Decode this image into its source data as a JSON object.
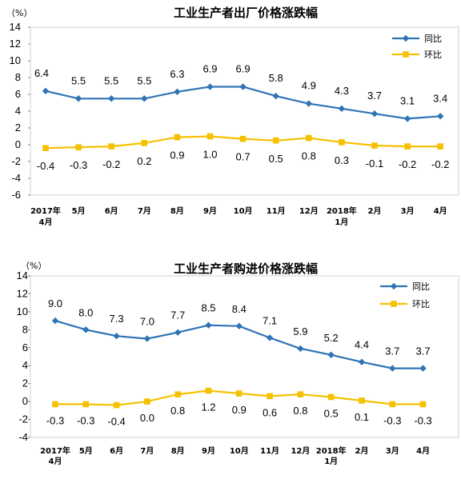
{
  "chart_data": [
    {
      "type": "line",
      "title": "工业生产者出厂价格涨跌幅",
      "unit": "（%）",
      "ylim": [
        -6,
        14
      ],
      "yticks": [
        -6,
        -4,
        -2,
        0,
        2,
        4,
        6,
        8,
        10,
        12,
        14
      ],
      "categories": [
        "2017年 4月",
        "5月",
        "6月",
        "7月",
        "8月",
        "9月",
        "10月",
        "11月",
        "12月",
        "2018年 1月",
        "2月",
        "3月",
        "4月"
      ],
      "legend_position": "top-right",
      "series": [
        {
          "name": "同比",
          "color": "#2e74b5",
          "marker": "diamond",
          "values": [
            6.4,
            5.5,
            5.5,
            5.5,
            6.3,
            6.9,
            6.9,
            5.8,
            4.9,
            4.3,
            3.7,
            3.1,
            3.4
          ]
        },
        {
          "name": "环比",
          "color": "#f5c000",
          "marker": "square",
          "values": [
            -0.4,
            -0.3,
            -0.2,
            0.2,
            0.9,
            1.0,
            0.7,
            0.5,
            0.8,
            0.3,
            -0.1,
            -0.2,
            -0.2
          ]
        }
      ]
    },
    {
      "type": "line",
      "title": "工业生产者购进价格涨跌幅",
      "unit": "（%）",
      "ylim": [
        -4,
        14
      ],
      "yticks": [
        -4,
        -2,
        0,
        2,
        4,
        6,
        8,
        10,
        12,
        14
      ],
      "categories": [
        "2017年 4月",
        "5月",
        "6月",
        "7月",
        "8月",
        "9月",
        "10月",
        "11月",
        "12月",
        "2018年 1月",
        "2月",
        "3月",
        "4月"
      ],
      "legend_position": "top-right",
      "series": [
        {
          "name": "同比",
          "color": "#2e74b5",
          "marker": "diamond",
          "values": [
            9.0,
            8.0,
            7.3,
            7.0,
            7.7,
            8.5,
            8.4,
            7.1,
            5.9,
            5.2,
            4.4,
            3.7,
            3.7
          ]
        },
        {
          "name": "环比",
          "color": "#f5c000",
          "marker": "square",
          "values": [
            -0.3,
            -0.3,
            -0.4,
            0.0,
            0.8,
            1.2,
            0.9,
            0.6,
            0.8,
            0.5,
            0.1,
            -0.3,
            -0.3
          ]
        }
      ]
    }
  ]
}
